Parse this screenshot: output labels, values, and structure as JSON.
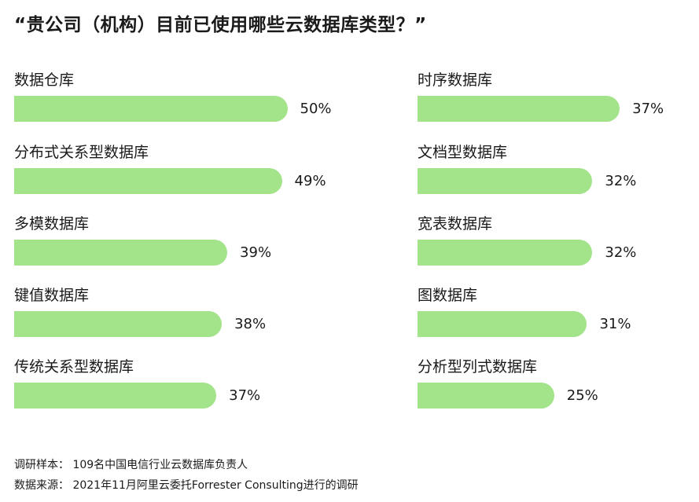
{
  "title": "“贵公司（机构）目前已使用哪些云数据库类型？”",
  "chart_data": {
    "type": "bar",
    "orientation": "horizontal",
    "unit": "%",
    "bar_color": "#a3e38a",
    "categories": [
      "数据仓库",
      "分布式关系型数据库",
      "多模数据库",
      "键值数据库",
      "传统关系型数据库",
      "时序数据库",
      "文档型数据库",
      "宽表数据库",
      "图数据库",
      "分析型列式数据库"
    ],
    "values": [
      50,
      49,
      39,
      38,
      37,
      37,
      32,
      32,
      31,
      25
    ],
    "value_labels": [
      "50%",
      "49%",
      "39%",
      "38%",
      "37%",
      "37%",
      "32%",
      "32%",
      "31%",
      "25%"
    ]
  },
  "footer": {
    "sample": "调研样本：  109名中国电信行业云数据库负责人",
    "source": "数据来源：  2021年11月阿里云委托Forrester Consulting进行的调研"
  }
}
